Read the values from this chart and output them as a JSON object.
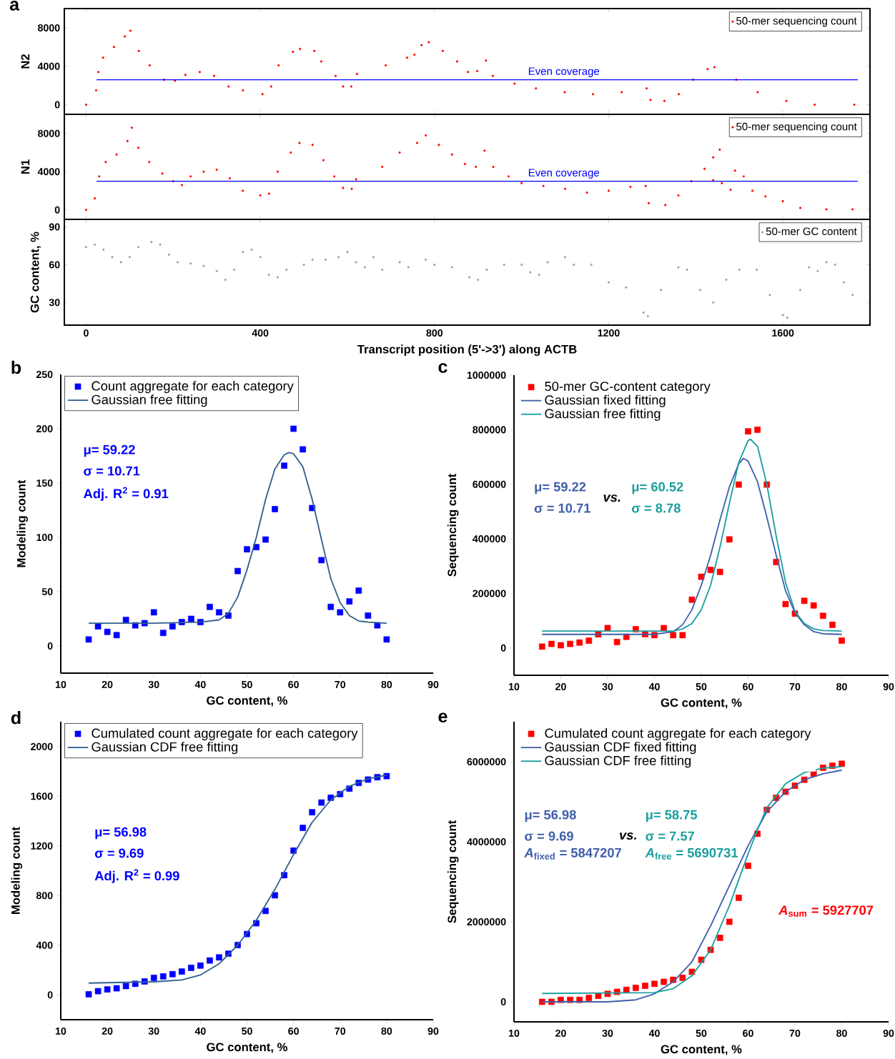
{
  "chart_data": [
    {
      "type": "scatter",
      "title": "a",
      "ylabel": "N2",
      "xlim": [
        -50,
        1800
      ],
      "ylim": [
        -1000,
        10000
      ],
      "xticks": [
        0,
        400,
        800,
        1200,
        1600
      ],
      "yticks": [
        0,
        4000,
        8000
      ],
      "tick_labels": "y",
      "legend": "top right",
      "marker": "circle",
      "ref_lines": [
        {
          "axis": "y",
          "value": 2600,
          "label": "Even coverage",
          "color": "#0000ff"
        }
      ],
      "series": [
        {
          "name": "50-mer sequencing count",
          "color": "#ff0000",
          "x": [
            0,
            23,
            28,
            39,
            64,
            89,
            102,
            121,
            146,
            179,
            204,
            228,
            261,
            294,
            327,
            360,
            405,
            425,
            442,
            475,
            491,
            524,
            540,
            573,
            590,
            609,
            622,
            688,
            737,
            754,
            770,
            787,
            819,
            852,
            877,
            898,
            918,
            934,
            984,
            1033,
            1099,
            1164,
            1230,
            1287,
            1296,
            1328,
            1361,
            1394,
            1427,
            1443,
            1493,
            1542,
            1608,
            1673,
            1764
          ],
          "values": [
            0,
            1500,
            3400,
            4900,
            6000,
            7100,
            7700,
            5600,
            4100,
            2600,
            2500,
            3100,
            3400,
            3000,
            1900,
            1500,
            1100,
            1900,
            4100,
            5500,
            5800,
            5600,
            4500,
            3000,
            1900,
            1900,
            3200,
            4100,
            4900,
            5200,
            6200,
            6500,
            5600,
            4500,
            3400,
            3500,
            4600,
            3000,
            2200,
            1700,
            1300,
            1100,
            1300,
            1700,
            500,
            400,
            1100,
            2600,
            3700,
            3900,
            2600,
            1300,
            400,
            0,
            0
          ]
        }
      ]
    },
    {
      "type": "scatter",
      "ylabel": "N1",
      "xlim": [
        -50,
        1800
      ],
      "ylim": [
        -1000,
        10000
      ],
      "xticks": [
        0,
        400,
        800,
        1200,
        1600
      ],
      "yticks": [
        0,
        4000,
        8000
      ],
      "tick_labels": "y",
      "legend": "top right",
      "marker": "circle",
      "ref_lines": [
        {
          "axis": "y",
          "value": 3000,
          "label": "Even coverage",
          "color": "#0000ff"
        }
      ],
      "series": [
        {
          "name": "50-mer sequencing count",
          "color": "#ff0000",
          "x": [
            0,
            20,
            30,
            45,
            70,
            95,
            105,
            120,
            145,
            175,
            200,
            220,
            240,
            270,
            300,
            330,
            360,
            400,
            420,
            440,
            470,
            490,
            520,
            545,
            570,
            590,
            610,
            620,
            680,
            720,
            760,
            780,
            810,
            840,
            870,
            895,
            915,
            935,
            970,
            1000,
            1050,
            1100,
            1150,
            1200,
            1250,
            1285,
            1292,
            1330,
            1360,
            1390,
            1420,
            1440,
            1455,
            1440,
            1460,
            1480,
            1490,
            1510,
            1530,
            1560,
            1600,
            1640,
            1700,
            1760
          ],
          "values": [
            0,
            1200,
            3500,
            5000,
            5800,
            7200,
            8600,
            6500,
            5000,
            3800,
            3000,
            2600,
            3500,
            4000,
            4200,
            3300,
            2000,
            1500,
            1700,
            4000,
            6000,
            7000,
            6800,
            5200,
            3500,
            2300,
            2200,
            3200,
            4500,
            6000,
            7000,
            7800,
            6800,
            5800,
            4800,
            4500,
            6200,
            4500,
            3500,
            2800,
            2500,
            2200,
            1800,
            2000,
            2400,
            2500,
            700,
            500,
            1500,
            3000,
            4300,
            5500,
            6300,
            3100,
            2800,
            2100,
            4100,
            3500,
            2000,
            1400,
            900,
            200,
            50,
            50
          ]
        }
      ]
    },
    {
      "type": "scatter",
      "xlabel": "Transcript position (5'->3') along ACTB",
      "ylabel": "GC content, %",
      "xlim": [
        -50,
        1800
      ],
      "ylim": [
        12,
        96
      ],
      "xticks": [
        0,
        400,
        800,
        1200,
        1600
      ],
      "yticks": [
        30,
        60,
        90
      ],
      "legend": "top right",
      "marker": "circle",
      "series": [
        {
          "name": "50-mer GC content",
          "color": "#a0a0a0",
          "x": [
            0,
            20,
            40,
            60,
            80,
            100,
            120,
            150,
            170,
            190,
            210,
            240,
            270,
            300,
            320,
            340,
            360,
            380,
            400,
            420,
            440,
            460,
            500,
            520,
            550,
            580,
            600,
            620,
            640,
            660,
            680,
            720,
            740,
            780,
            800,
            840,
            880,
            900,
            920,
            960,
            1000,
            1020,
            1040,
            1060,
            1100,
            1120,
            1160,
            1200,
            1240,
            1280,
            1290,
            1320,
            1360,
            1380,
            1410,
            1440,
            1470,
            1500,
            1540,
            1570,
            1600,
            1610,
            1640,
            1660,
            1680,
            1700,
            1720,
            1740,
            1760
          ],
          "values": [
            74,
            76,
            72,
            66,
            62,
            66,
            74,
            78,
            76,
            68,
            62,
            61,
            59,
            55,
            48,
            56,
            70,
            72,
            66,
            52,
            50,
            56,
            60,
            64,
            64,
            66,
            70,
            62,
            58,
            66,
            56,
            62,
            58,
            64,
            60,
            58,
            50,
            48,
            56,
            60,
            60,
            54,
            52,
            62,
            66,
            60,
            60,
            46,
            42,
            22,
            19,
            40,
            58,
            56,
            40,
            30,
            48,
            56,
            56,
            36,
            20,
            18,
            40,
            58,
            55,
            62,
            60,
            46,
            36
          ]
        }
      ]
    },
    {
      "type": "scatter",
      "title": "b",
      "xlabel": "GC content, %",
      "ylabel": "Modeling count",
      "xlim": [
        10,
        90
      ],
      "ylim": [
        -25,
        250
      ],
      "xticks": [
        10,
        20,
        30,
        40,
        50,
        60,
        70,
        80,
        90
      ],
      "yticks": [
        0,
        50,
        100,
        150,
        200,
        250
      ],
      "legend": "top left",
      "annotations": [
        "μ= 59.22",
        "σ = 10.71",
        "Adj. R$^{2}$ = 0.91"
      ],
      "series": [
        {
          "name": "Count aggregate for each category",
          "marker": "square",
          "color": "#0000ff",
          "x": [
            16,
            18,
            20,
            22,
            24,
            26,
            28,
            30,
            32,
            34,
            36,
            38,
            40,
            42,
            44,
            46,
            48,
            50,
            52,
            54,
            56,
            58,
            60,
            62,
            64,
            66,
            68,
            70,
            72,
            74,
            76,
            78,
            80
          ],
          "values": [
            6,
            18,
            13,
            10,
            24,
            19,
            21,
            31,
            12,
            18,
            22,
            25,
            22,
            36,
            31,
            28,
            69,
            89,
            91,
            98,
            126,
            166,
            200,
            181,
            127,
            79,
            36,
            31,
            41,
            51,
            28,
            19,
            6
          ]
        },
        {
          "type": "line",
          "marker": "none",
          "name": "Gaussian free fitting",
          "color": "#2f5f8f",
          "x": [
            16,
            30,
            40,
            44,
            46,
            48,
            50,
            52,
            54,
            56,
            58,
            59,
            60,
            62,
            64,
            66,
            68,
            70,
            72,
            74,
            76,
            80
          ],
          "values": [
            21,
            21,
            22,
            24,
            30,
            45,
            70,
            100,
            135,
            163,
            176,
            178,
            177,
            165,
            135,
            98,
            62,
            40,
            28,
            23,
            22,
            21
          ]
        }
      ]
    },
    {
      "type": "scatter",
      "title": "c",
      "xlabel": "GC content, %",
      "ylabel": "Sequencing count",
      "xlim": [
        10,
        90
      ],
      "ylim": [
        -100000,
        1000000
      ],
      "xticks": [
        10,
        20,
        30,
        40,
        50,
        60,
        70,
        80,
        90
      ],
      "yticks": [
        0,
        200000,
        400000,
        600000,
        800000,
        1000000
      ],
      "legend": "top left",
      "annotations": [
        "μ= 59.22",
        "σ = 10.71",
        "vs.",
        "μ= 60.52",
        "σ = 8.78"
      ],
      "series": [
        {
          "name": "50-mer GC-content category",
          "marker": "square",
          "color": "#ff0000",
          "x": [
            16,
            18,
            20,
            22,
            24,
            26,
            28,
            30,
            32,
            34,
            36,
            38,
            40,
            42,
            44,
            46,
            48,
            50,
            52,
            54,
            56,
            58,
            60,
            62,
            64,
            66,
            68,
            70,
            72,
            74,
            76,
            78,
            80
          ],
          "values": [
            5000,
            15000,
            10000,
            15000,
            20000,
            27000,
            50000,
            73000,
            22000,
            41000,
            69000,
            51000,
            47000,
            73000,
            47000,
            47000,
            177000,
            261000,
            286000,
            279000,
            398000,
            599000,
            794000,
            800000,
            599000,
            315000,
            161000,
            126000,
            173000,
            156000,
            118000,
            85000,
            27000
          ]
        },
        {
          "type": "line",
          "marker": "none",
          "name": "Gaussian fixed fitting",
          "color": "#3f5fa8",
          "x": [
            16,
            40,
            44,
            46,
            48,
            50,
            52,
            54,
            56,
            58,
            59,
            60,
            62,
            64,
            66,
            68,
            70,
            72,
            74,
            76,
            80
          ],
          "values": [
            50000,
            50000,
            60000,
            85000,
            140000,
            230000,
            340000,
            470000,
            590000,
            675000,
            695000,
            685000,
            610000,
            480000,
            340000,
            210000,
            130000,
            85000,
            60000,
            52000,
            50000
          ]
        },
        {
          "type": "line",
          "marker": "none",
          "name": "Gaussian free fitting",
          "color": "#1a9f9f",
          "x": [
            16,
            44,
            46,
            48,
            50,
            52,
            54,
            56,
            58,
            60,
            60.5,
            62,
            64,
            66,
            68,
            70,
            72,
            74,
            76,
            80
          ],
          "values": [
            62000,
            62000,
            70000,
            90000,
            140000,
            230000,
            370000,
            530000,
            680000,
            760000,
            765000,
            740000,
            600000,
            410000,
            240000,
            135000,
            90000,
            70000,
            64000,
            62000
          ]
        }
      ]
    },
    {
      "type": "scatter",
      "title": "d",
      "xlabel": "GC content, %",
      "ylabel": "Modeling count",
      "xlim": [
        10,
        90
      ],
      "ylim": [
        -200,
        2200
      ],
      "xticks": [
        10,
        20,
        30,
        40,
        50,
        60,
        70,
        80,
        90
      ],
      "yticks": [
        0,
        400,
        800,
        1200,
        1600,
        2000
      ],
      "legend": "top left",
      "annotations": [
        "μ= 56.98",
        "σ = 9.69",
        "Adj. R$^{2}$ = 0.99"
      ],
      "series": [
        {
          "name": "Cumulated count aggregate for each category",
          "marker": "square",
          "color": "#0000ff",
          "x": [
            16,
            18,
            20,
            22,
            24,
            26,
            28,
            30,
            32,
            34,
            36,
            38,
            40,
            42,
            44,
            46,
            48,
            50,
            52,
            54,
            56,
            58,
            60,
            62,
            64,
            66,
            68,
            70,
            72,
            74,
            76,
            78,
            80
          ],
          "values": [
            5,
            30,
            44,
            53,
            71,
            89,
            108,
            137,
            149,
            167,
            188,
            218,
            236,
            277,
            302,
            332,
            401,
            490,
            577,
            676,
            802,
            964,
            1162,
            1345,
            1471,
            1549,
            1588,
            1617,
            1661,
            1707,
            1734,
            1753,
            1762
          ]
        },
        {
          "type": "line",
          "marker": "none",
          "name": "Gaussian CDF free fitting",
          "color": "#2f5f8f",
          "x": [
            16,
            30,
            36,
            40,
            44,
            48,
            52,
            56,
            60,
            64,
            68,
            72,
            76,
            80
          ],
          "values": [
            95,
            105,
            120,
            160,
            250,
            400,
            600,
            850,
            1130,
            1390,
            1570,
            1680,
            1740,
            1770
          ]
        }
      ]
    },
    {
      "type": "scatter",
      "title": "e",
      "xlabel": "GC content, %",
      "ylabel": "Sequencing count",
      "xlim": [
        10,
        90
      ],
      "ylim": [
        -500000,
        7000000
      ],
      "xticks": [
        10,
        20,
        30,
        40,
        50,
        60,
        70,
        80,
        90
      ],
      "yticks": [
        0,
        2000000,
        4000000,
        6000000
      ],
      "legend": "top left",
      "annotations": [
        "μ= 56.98",
        "σ = 9.69",
        "*A*$_{fixed}$ = 5847207",
        "vs.",
        "μ= 58.75",
        "σ = 7.57",
        "*A*$_{free}$ = 5690731",
        "*A*$_{sum}$ = 5927707"
      ],
      "series": [
        {
          "name": "Cumulated count aggregate for each category",
          "marker": "square",
          "color": "#ff0000",
          "x": [
            16,
            18,
            20,
            22,
            24,
            26,
            28,
            30,
            32,
            34,
            36,
            38,
            40,
            42,
            44,
            46,
            48,
            50,
            52,
            54,
            56,
            58,
            60,
            62,
            64,
            66,
            68,
            70,
            72,
            74,
            76,
            78,
            80
          ],
          "values": [
            0,
            0,
            50000,
            50000,
            50000,
            100000,
            150000,
            200000,
            250000,
            300000,
            350000,
            400000,
            450000,
            500000,
            550000,
            600000,
            750000,
            1050000,
            1300000,
            1600000,
            2000000,
            2600000,
            3400000,
            4200000,
            4800000,
            5100000,
            5250000,
            5400000,
            5550000,
            5700000,
            5850000,
            5900000,
            5950000
          ]
        },
        {
          "type": "line",
          "marker": "none",
          "name": "Gaussian CDF fixed fitting",
          "color": "#3f5fa8",
          "x": [
            16,
            30,
            36,
            40,
            44,
            48,
            52,
            56,
            60,
            64,
            68,
            72,
            76,
            80
          ],
          "values": [
            0,
            0,
            50000,
            200000,
            500000,
            1000000,
            1900000,
            2900000,
            3900000,
            4750000,
            5250000,
            5550000,
            5700000,
            5790000
          ]
        },
        {
          "type": "line",
          "marker": "none",
          "name": "Gaussian CDF free fitting",
          "color": "#1a9f9f",
          "x": [
            16,
            40,
            44,
            48,
            52,
            56,
            60,
            62,
            64,
            68,
            72,
            76,
            80
          ],
          "values": [
            210000,
            230000,
            330000,
            650000,
            1300000,
            2400000,
            3700000,
            4300000,
            4850000,
            5450000,
            5730000,
            5840000,
            5880000
          ]
        }
      ]
    }
  ]
}
